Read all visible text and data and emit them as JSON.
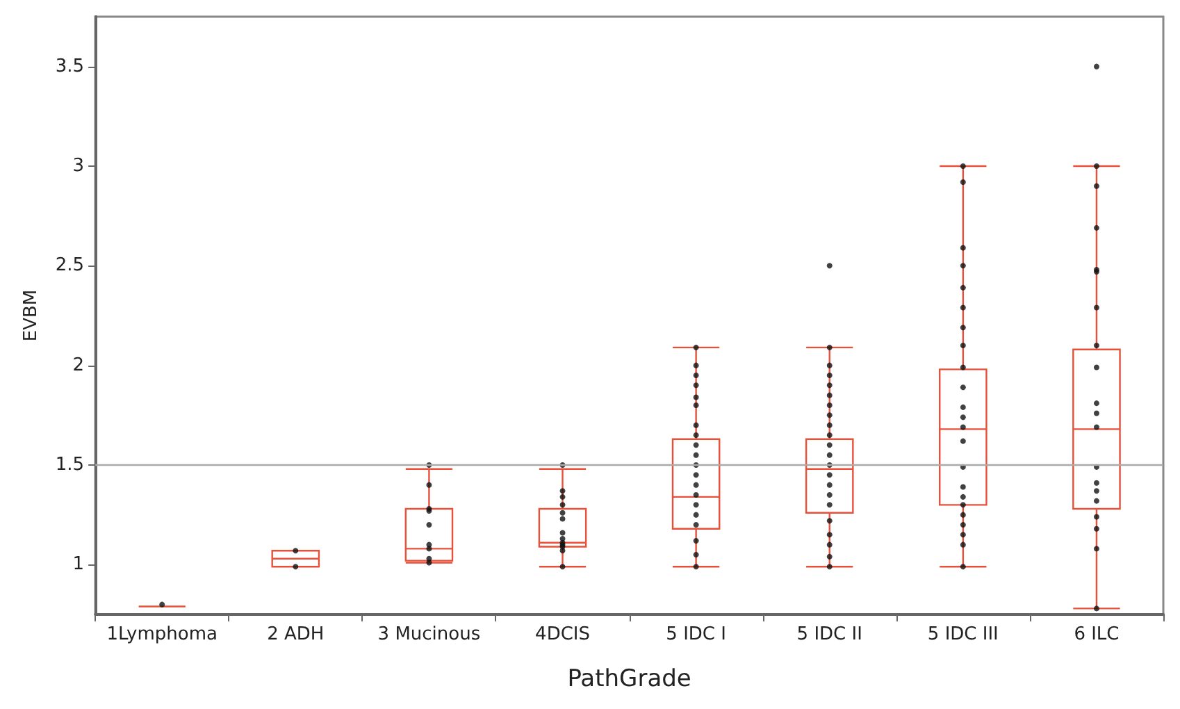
{
  "chart_data": {
    "type": "box",
    "xlabel": "PathGrade",
    "ylabel": "EVBM",
    "categories": [
      "1Lymphoma",
      "2 ADH",
      "3 Mucinous",
      "4DCIS",
      "5 IDC I",
      "5 IDC II",
      "5 IDC III",
      "6 ILC"
    ],
    "ylim": [
      0.75,
      3.75
    ],
    "yticks": [
      1,
      1.5,
      2,
      2.5,
      3,
      3.5
    ],
    "grid": false,
    "marker": "circle",
    "ref_lines": [
      {
        "axis": "y",
        "value": 1.5,
        "color": "#aaaaaa"
      }
    ],
    "series": [
      {
        "color": "#e8503a",
        "boxes": [
          {
            "low": 0.79,
            "q1": 0.79,
            "median": 0.79,
            "q3": 0.79,
            "high": 0.79
          },
          {
            "low": 0.99,
            "q1": 0.99,
            "median": 1.03,
            "q3": 1.07,
            "high": 1.07
          },
          {
            "low": 1.01,
            "q1": 1.02,
            "median": 1.08,
            "q3": 1.28,
            "high": 1.48
          },
          {
            "low": 0.99,
            "q1": 1.09,
            "median": 1.11,
            "q3": 1.28,
            "high": 1.48
          },
          {
            "low": 0.99,
            "q1": 1.18,
            "median": 1.34,
            "q3": 1.63,
            "high": 2.09
          },
          {
            "low": 0.99,
            "q1": 1.26,
            "median": 1.48,
            "q3": 1.63,
            "high": 2.09,
            "outliers": [
              2.5
            ]
          },
          {
            "low": 0.99,
            "q1": 1.3,
            "median": 1.68,
            "q3": 1.98,
            "high": 3.0
          },
          {
            "low": 0.78,
            "q1": 1.28,
            "median": 1.68,
            "q3": 2.08,
            "high": 3.0,
            "outliers": [
              3.5
            ]
          }
        ]
      },
      {
        "type": "scatter",
        "color": "#111111",
        "x": [
          "1Lymphoma",
          "2 ADH",
          "2 ADH",
          "3 Mucinous",
          "3 Mucinous",
          "3 Mucinous",
          "3 Mucinous",
          "3 Mucinous",
          "3 Mucinous",
          "3 Mucinous",
          "3 Mucinous",
          "3 Mucinous",
          "4DCIS",
          "4DCIS",
          "4DCIS",
          "4DCIS",
          "4DCIS",
          "4DCIS",
          "4DCIS",
          "4DCIS",
          "4DCIS",
          "4DCIS",
          "4DCIS",
          "4DCIS",
          "4DCIS",
          "5 IDC I",
          "5 IDC I",
          "5 IDC I",
          "5 IDC I",
          "5 IDC I",
          "5 IDC I",
          "5 IDC I",
          "5 IDC I",
          "5 IDC I",
          "5 IDC I",
          "5 IDC I",
          "5 IDC I",
          "5 IDC I",
          "5 IDC I",
          "5 IDC I",
          "5 IDC I",
          "5 IDC I",
          "5 IDC I",
          "5 IDC I",
          "5 IDC I",
          "5 IDC II",
          "5 IDC II",
          "5 IDC II",
          "5 IDC II",
          "5 IDC II",
          "5 IDC II",
          "5 IDC II",
          "5 IDC II",
          "5 IDC II",
          "5 IDC II",
          "5 IDC II",
          "5 IDC II",
          "5 IDC II",
          "5 IDC II",
          "5 IDC II",
          "5 IDC II",
          "5 IDC II",
          "5 IDC II",
          "5 IDC II",
          "5 IDC II",
          "5 IDC II",
          "5 IDC III",
          "5 IDC III",
          "5 IDC III",
          "5 IDC III",
          "5 IDC III",
          "5 IDC III",
          "5 IDC III",
          "5 IDC III",
          "5 IDC III",
          "5 IDC III",
          "5 IDC III",
          "5 IDC III",
          "5 IDC III",
          "5 IDC III",
          "5 IDC III",
          "5 IDC III",
          "5 IDC III",
          "5 IDC III",
          "5 IDC III",
          "5 IDC III",
          "5 IDC III",
          "5 IDC III",
          "5 IDC III",
          "6 ILC",
          "6 ILC",
          "6 ILC",
          "6 ILC",
          "6 ILC",
          "6 ILC",
          "6 ILC",
          "6 ILC",
          "6 ILC",
          "6 ILC",
          "6 ILC",
          "6 ILC",
          "6 ILC",
          "6 ILC",
          "6 ILC",
          "6 ILC",
          "6 ILC",
          "6 ILC",
          "6 ILC"
        ],
        "values": [
          0.8,
          1.07,
          0.99,
          1.5,
          1.4,
          1.28,
          1.27,
          1.2,
          1.1,
          1.08,
          1.03,
          1.01,
          1.5,
          1.37,
          1.34,
          1.3,
          1.26,
          1.23,
          1.16,
          1.13,
          1.11,
          1.1,
          1.09,
          1.07,
          0.99,
          2.09,
          2.0,
          1.95,
          1.9,
          1.84,
          1.8,
          1.7,
          1.65,
          1.6,
          1.55,
          1.5,
          1.45,
          1.4,
          1.35,
          1.3,
          1.25,
          1.2,
          1.12,
          1.05,
          0.99,
          2.09,
          2.0,
          1.95,
          1.9,
          1.85,
          1.8,
          1.75,
          1.7,
          1.65,
          1.6,
          1.55,
          1.5,
          1.45,
          1.4,
          1.35,
          1.3,
          1.22,
          1.15,
          1.1,
          1.04,
          0.99,
          3.0,
          2.92,
          2.59,
          2.5,
          2.39,
          2.29,
          2.19,
          2.1,
          1.99,
          1.89,
          1.79,
          1.74,
          1.69,
          1.62,
          1.49,
          1.39,
          1.34,
          1.3,
          1.25,
          1.2,
          1.15,
          1.1,
          0.99,
          3.0,
          2.9,
          2.69,
          2.48,
          2.47,
          2.29,
          2.1,
          1.99,
          1.81,
          1.76,
          1.69,
          1.49,
          1.41,
          1.37,
          1.32,
          1.24,
          1.18,
          1.08,
          0.78
        ]
      }
    ]
  }
}
